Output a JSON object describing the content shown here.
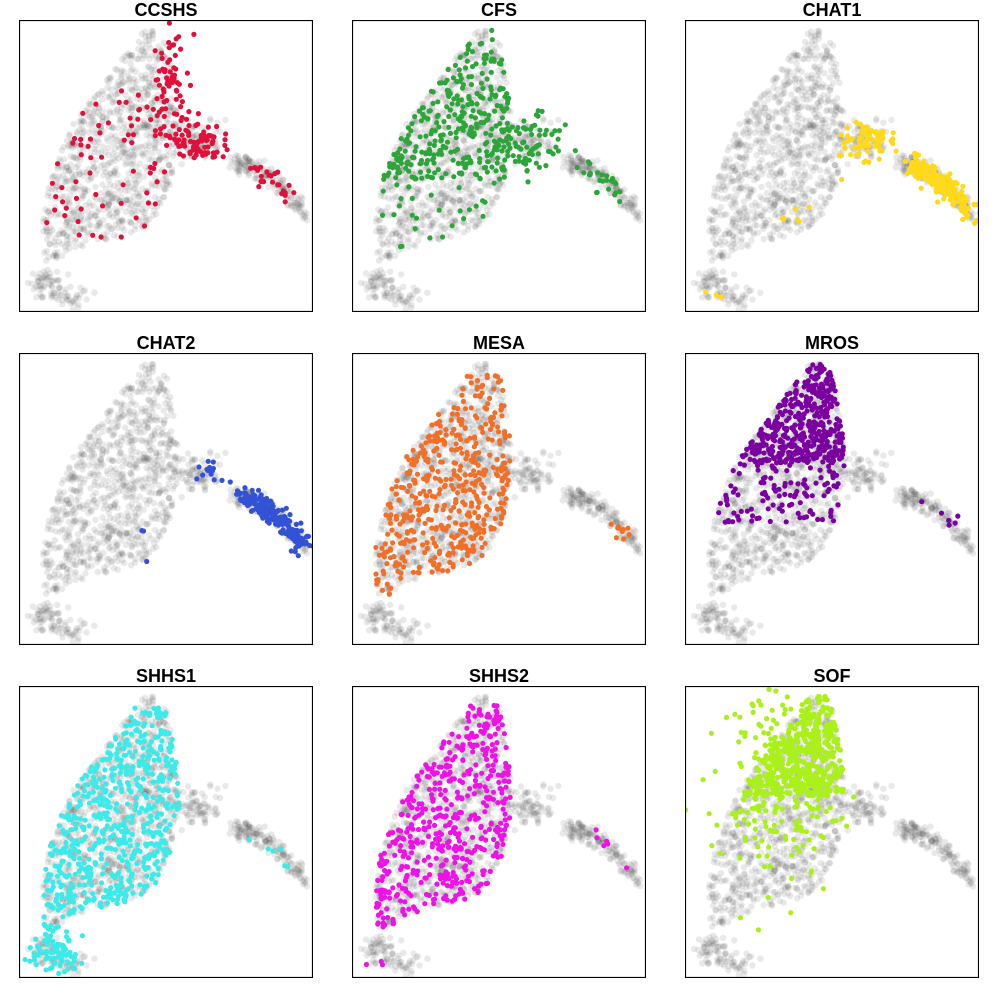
{
  "chart_data": {
    "type": "scatter",
    "title": "",
    "xlabel": "",
    "ylabel": "",
    "grid": false,
    "legend": "none",
    "background_color": "#4d4d4d",
    "panels": [
      {
        "name": "CCSHS",
        "color": "#e0103a",
        "regions": [
          "top-right-ridge",
          "bridge",
          "tail-mid",
          "body-sparse"
        ]
      },
      {
        "name": "CFS",
        "color": "#2ea53a",
        "regions": [
          "body-top",
          "bridge-wide",
          "tail-mid",
          "body-sparse"
        ]
      },
      {
        "name": "CHAT1",
        "color": "#ffd91a",
        "regions": [
          "tail-full",
          "bridge",
          "left-edge-few",
          "bottom-left-few"
        ]
      },
      {
        "name": "CHAT2",
        "color": "#3352d6",
        "regions": [
          "tail-full",
          "bridge-upper",
          "few-scattered"
        ]
      },
      {
        "name": "MESA",
        "color": "#f0702a",
        "regions": [
          "body-center",
          "tail-tip"
        ]
      },
      {
        "name": "MROS",
        "color": "#7a00a0",
        "regions": [
          "body-top-dense",
          "body-mid",
          "tail-few"
        ]
      },
      {
        "name": "SHHS1",
        "color": "#3deaea",
        "regions": [
          "body-lower-dense",
          "bottom-left-blob",
          "tail-few"
        ]
      },
      {
        "name": "SHHS2",
        "color": "#ee11e8",
        "regions": [
          "body-center-dense",
          "tail-few",
          "bottom-left-few"
        ]
      },
      {
        "name": "SOF",
        "color": "#aaf01a",
        "regions": [
          "body-spine",
          "body-top-dense"
        ]
      }
    ]
  }
}
